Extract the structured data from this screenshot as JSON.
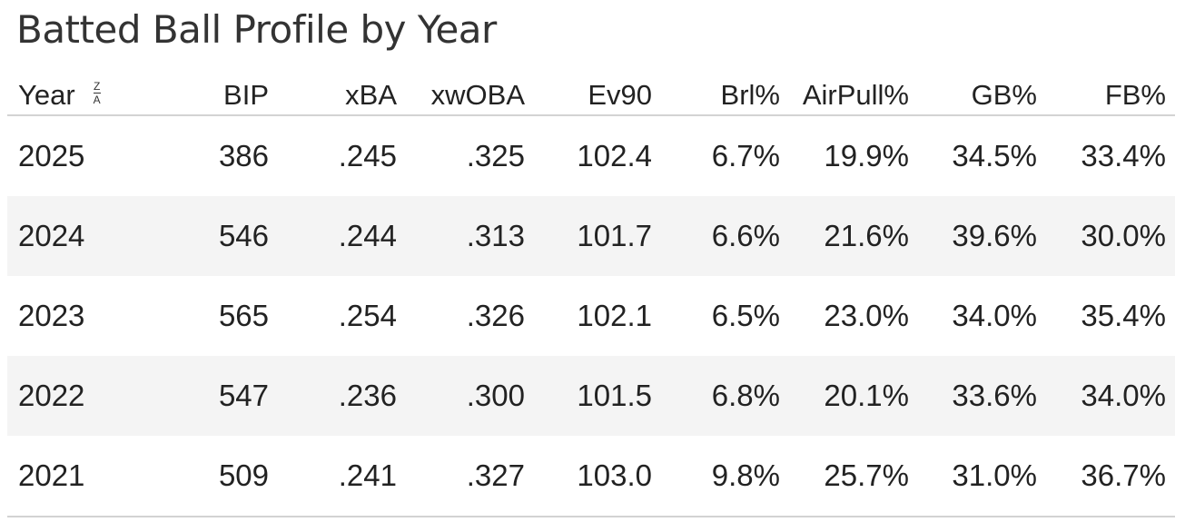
{
  "title": "Batted Ball Profile by Year",
  "sort_icon": {
    "top": "Z",
    "bottom": "A",
    "icon": "sort-descending-icon"
  },
  "chart_data": {
    "type": "table",
    "title": "Batted Ball Profile by Year",
    "columns": [
      "Year",
      "BIP",
      "xBA",
      "xwOBA",
      "Ev90",
      "Brl%",
      "AirPull%",
      "GB%",
      "FB%"
    ],
    "rows": [
      [
        "2025",
        "386",
        ".245",
        ".325",
        "102.4",
        "6.7%",
        "19.9%",
        "34.5%",
        "33.4%"
      ],
      [
        "2024",
        "546",
        ".244",
        ".313",
        "101.7",
        "6.6%",
        "21.6%",
        "39.6%",
        "30.0%"
      ],
      [
        "2023",
        "565",
        ".254",
        ".326",
        "102.1",
        "6.5%",
        "23.0%",
        "34.0%",
        "35.4%"
      ],
      [
        "2022",
        "547",
        ".236",
        ".300",
        "101.5",
        "6.8%",
        "20.1%",
        "33.6%",
        "34.0%"
      ],
      [
        "2021",
        "509",
        ".241",
        ".327",
        "103.0",
        "9.8%",
        "25.7%",
        "31.0%",
        "36.7%"
      ]
    ],
    "sort": {
      "column": "Year",
      "direction": "descending"
    },
    "row_stripe_color": "#f4f4f4",
    "rule_color": "#d3d3d3"
  }
}
